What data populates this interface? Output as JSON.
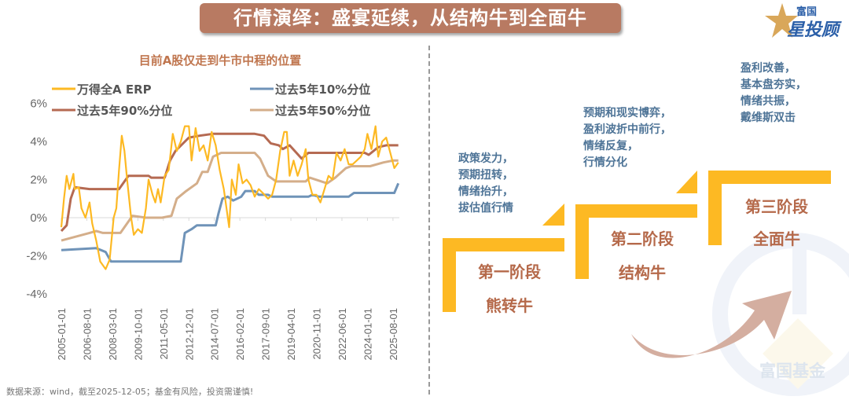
{
  "header": {
    "title": "行情演绎：盛宴延续，从结构牛到全面牛",
    "logo_top": "富国",
    "logo_main": "星投顾",
    "logo_star_color": "#d9a75a"
  },
  "chart_data": {
    "type": "line",
    "title": "目前A股仅走到牛市中程的位置",
    "ylim": [
      -4,
      6
    ],
    "yticks": [
      "6%",
      "4%",
      "2%",
      "0%",
      "-2%",
      "-4%"
    ],
    "ytick_values": [
      6,
      4,
      2,
      0,
      -2,
      -4
    ],
    "xlim": [
      "2005-01",
      "2025-12"
    ],
    "xticks": [
      "2005-01-01",
      "2006-08-01",
      "2008-03-01",
      "2009-10-01",
      "2011-05-01",
      "2012-12-01",
      "2014-07-01",
      "2016-02-01",
      "2017-09-01",
      "2019-04-01",
      "2020-11-01",
      "2022-06-01",
      "2024-01-01",
      "2025-08-01"
    ],
    "grid": false,
    "legend_placement": "top",
    "series": [
      {
        "name": "万得全A ERP",
        "color": "#fdb923",
        "points": [
          [
            "2005-01",
            -0.5
          ],
          [
            "2005-03",
            1.0
          ],
          [
            "2005-05",
            2.2
          ],
          [
            "2005-07",
            1.5
          ],
          [
            "2005-10",
            2.3
          ],
          [
            "2005-11",
            1.5
          ],
          [
            "2006-02",
            1.6
          ],
          [
            "2006-04",
            0.5
          ],
          [
            "2006-07",
            0.0
          ],
          [
            "2006-10",
            0.8
          ],
          [
            "2006-12",
            -0.3
          ],
          [
            "2007-03",
            -1.2
          ],
          [
            "2007-06",
            -2.3
          ],
          [
            "2007-10",
            -2.7
          ],
          [
            "2008-01",
            -2.2
          ],
          [
            "2008-04",
            0.0
          ],
          [
            "2008-06",
            0.5
          ],
          [
            "2008-08",
            2.5
          ],
          [
            "2008-10",
            4.3
          ],
          [
            "2008-12",
            3.5
          ],
          [
            "2009-02",
            2.0
          ],
          [
            "2009-05",
            0.0
          ],
          [
            "2009-07",
            -0.9
          ],
          [
            "2009-10",
            -0.6
          ],
          [
            "2010-01",
            -0.8
          ],
          [
            "2010-04",
            0.5
          ],
          [
            "2010-06",
            2.0
          ],
          [
            "2010-09",
            1.2
          ],
          [
            "2010-11",
            0.8
          ],
          [
            "2011-01",
            1.5
          ],
          [
            "2011-03",
            0.8
          ],
          [
            "2011-06",
            2.2
          ],
          [
            "2011-09",
            2.5
          ],
          [
            "2011-12",
            4.4
          ],
          [
            "2012-03",
            3.5
          ],
          [
            "2012-06",
            4.0
          ],
          [
            "2012-09",
            4.8
          ],
          [
            "2012-12",
            4.8
          ],
          [
            "2013-02",
            3.0
          ],
          [
            "2013-05",
            4.7
          ],
          [
            "2013-08",
            3.5
          ],
          [
            "2013-11",
            3.8
          ],
          [
            "2014-02",
            3.0
          ],
          [
            "2014-05",
            4.5
          ],
          [
            "2014-08",
            3.8
          ],
          [
            "2014-11",
            2.5
          ],
          [
            "2015-02",
            1.5
          ],
          [
            "2015-06",
            -0.5
          ],
          [
            "2015-08",
            2.0
          ],
          [
            "2015-11",
            1.2
          ],
          [
            "2016-01",
            2.8
          ],
          [
            "2016-04",
            1.8
          ],
          [
            "2016-07",
            2.0
          ],
          [
            "2016-10",
            1.7
          ],
          [
            "2017-01",
            1.1
          ],
          [
            "2017-04",
            1.5
          ],
          [
            "2017-07",
            1.3
          ],
          [
            "2017-11",
            1.0
          ],
          [
            "2018-02",
            1.2
          ],
          [
            "2018-05",
            2.0
          ],
          [
            "2018-08",
            3.5
          ],
          [
            "2018-11",
            4.5
          ],
          [
            "2019-01",
            4.5
          ],
          [
            "2019-03",
            2.2
          ],
          [
            "2019-06",
            3.0
          ],
          [
            "2019-09",
            2.2
          ],
          [
            "2019-12",
            2.8
          ],
          [
            "2020-03",
            3.6
          ],
          [
            "2020-05",
            2.0
          ],
          [
            "2020-08",
            1.2
          ],
          [
            "2020-11",
            1.2
          ],
          [
            "2021-02",
            0.8
          ],
          [
            "2021-05",
            1.5
          ],
          [
            "2021-08",
            2.2
          ],
          [
            "2021-11",
            2.0
          ],
          [
            "2022-02",
            3.4
          ],
          [
            "2022-05",
            3.0
          ],
          [
            "2022-08",
            3.6
          ],
          [
            "2022-11",
            2.8
          ],
          [
            "2023-02",
            2.8
          ],
          [
            "2023-05",
            3.0
          ],
          [
            "2023-08",
            3.2
          ],
          [
            "2023-11",
            3.6
          ],
          [
            "2024-01",
            4.4
          ],
          [
            "2024-04",
            3.6
          ],
          [
            "2024-07",
            4.8
          ],
          [
            "2024-09",
            3.2
          ],
          [
            "2024-12",
            4.0
          ],
          [
            "2025-03",
            4.2
          ],
          [
            "2025-06",
            3.4
          ],
          [
            "2025-09",
            2.6
          ],
          [
            "2025-12",
            2.9
          ]
        ]
      },
      {
        "name": "过去5年10%分位",
        "color": "#6f93b8",
        "points": [
          [
            "2005-01",
            -1.7
          ],
          [
            "2007-03",
            -1.6
          ],
          [
            "2007-10",
            -1.8
          ],
          [
            "2008-02",
            -2.3
          ],
          [
            "2012-06",
            -2.3
          ],
          [
            "2012-09",
            -0.8
          ],
          [
            "2013-02",
            -0.6
          ],
          [
            "2013-06",
            -0.4
          ],
          [
            "2014-08",
            -0.4
          ],
          [
            "2014-10",
            0.2
          ],
          [
            "2015-01",
            1.0
          ],
          [
            "2015-05",
            1.1
          ],
          [
            "2015-09",
            0.9
          ],
          [
            "2016-03",
            1.1
          ],
          [
            "2016-06",
            1.4
          ],
          [
            "2017-01",
            1.4
          ],
          [
            "2017-04",
            1.2
          ],
          [
            "2017-11",
            1.2
          ],
          [
            "2018-02",
            1.1
          ],
          [
            "2020-05",
            1.1
          ],
          [
            "2020-08",
            1.2
          ],
          [
            "2021-01",
            1.1
          ],
          [
            "2022-11",
            1.1
          ],
          [
            "2023-03",
            1.3
          ],
          [
            "2025-09",
            1.3
          ],
          [
            "2025-12",
            1.8
          ]
        ]
      },
      {
        "name": "过去5年90%分位",
        "color": "#b56a52",
        "points": [
          [
            "2005-01",
            -0.7
          ],
          [
            "2005-05",
            -0.4
          ],
          [
            "2005-08",
            1.0
          ],
          [
            "2005-11",
            1.6
          ],
          [
            "2006-10",
            1.5
          ],
          [
            "2008-08",
            1.5
          ],
          [
            "2009-03",
            2.2
          ],
          [
            "2010-06",
            2.2
          ],
          [
            "2010-08",
            2.1
          ],
          [
            "2011-06",
            2.1
          ],
          [
            "2011-10",
            3.0
          ],
          [
            "2012-02",
            3.5
          ],
          [
            "2012-12",
            4.2
          ],
          [
            "2013-08",
            4.3
          ],
          [
            "2014-06",
            4.4
          ],
          [
            "2017-01",
            4.4
          ],
          [
            "2017-08",
            4.3
          ],
          [
            "2018-01",
            3.9
          ],
          [
            "2018-07",
            3.8
          ],
          [
            "2018-10",
            3.6
          ],
          [
            "2019-03",
            3.8
          ],
          [
            "2019-12",
            3.1
          ],
          [
            "2020-05",
            3.4
          ],
          [
            "2023-11",
            3.4
          ],
          [
            "2024-02",
            3.3
          ],
          [
            "2024-09",
            3.7
          ],
          [
            "2025-03",
            3.8
          ],
          [
            "2025-12",
            3.8
          ]
        ]
      },
      {
        "name": "过去5年50%分位",
        "color": "#d4ae8a",
        "points": [
          [
            "2005-01",
            -1.2
          ],
          [
            "2006-10",
            -0.8
          ],
          [
            "2007-03",
            -0.7
          ],
          [
            "2007-08",
            -0.8
          ],
          [
            "2008-09",
            -0.8
          ],
          [
            "2009-06",
            0.1
          ],
          [
            "2010-04",
            0.0
          ],
          [
            "2011-04",
            0.0
          ],
          [
            "2011-11",
            0.1
          ],
          [
            "2012-03",
            1.0
          ],
          [
            "2012-10",
            1.4
          ],
          [
            "2013-06",
            1.8
          ],
          [
            "2013-10",
            2.4
          ],
          [
            "2014-02",
            2.4
          ],
          [
            "2014-06",
            3.2
          ],
          [
            "2014-12",
            3.4
          ],
          [
            "2017-01",
            3.4
          ],
          [
            "2017-05",
            3.1
          ],
          [
            "2017-11",
            2.2
          ],
          [
            "2018-05",
            1.9
          ],
          [
            "2020-03",
            1.9
          ],
          [
            "2020-06",
            2.1
          ],
          [
            "2021-07",
            1.8
          ],
          [
            "2022-01",
            2.1
          ],
          [
            "2022-09",
            2.6
          ],
          [
            "2023-01",
            2.7
          ],
          [
            "2024-03",
            2.7
          ],
          [
            "2025-01",
            2.9
          ],
          [
            "2025-08",
            3.0
          ],
          [
            "2025-12",
            3.0
          ]
        ]
      }
    ]
  },
  "footer": {
    "source": "数据来源：wind，截至2025-12-05；基金有风险，投资需谨慎!"
  },
  "stages": [
    {
      "desc": "政策发力，\n预期扭转，\n情绪抬升，\n拔估值行情",
      "name": "第一阶段",
      "label": "熊转牛"
    },
    {
      "desc": "预期和现实博弈，\n盈利波折中前行，\n情绪反复，\n行情分化",
      "name": "第二阶段",
      "label": "结构牛"
    },
    {
      "desc": "盈利改善，\n基本盘夯实，\n情绪共振，\n戴维斯双击",
      "name": "第三阶段",
      "label": "全面牛"
    }
  ],
  "watermark": {
    "text": "富国基金"
  },
  "colors": {
    "step": "#fdb923",
    "stage_text": "#b5694a",
    "desc_text": "#4e7497",
    "arrow": "#d4aea0",
    "banner": "#b87a62"
  }
}
